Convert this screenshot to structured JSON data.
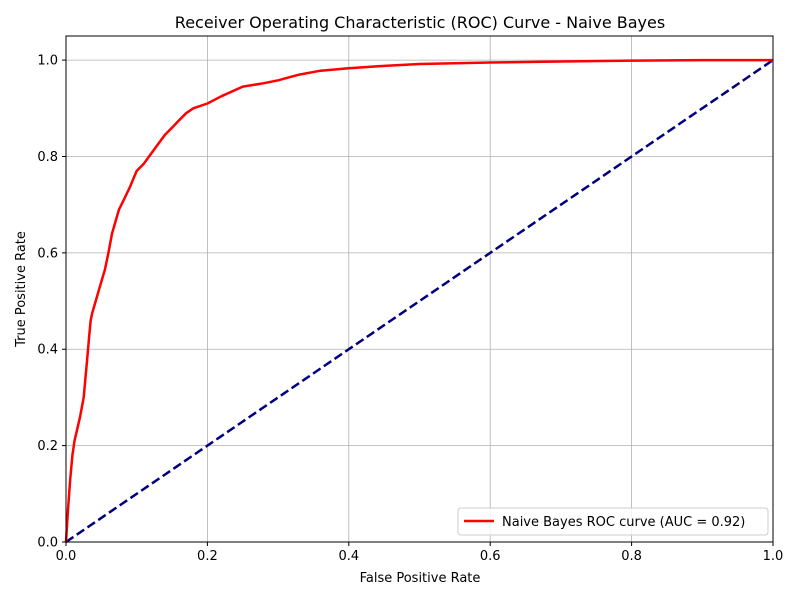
{
  "chart_data": {
    "type": "line",
    "title": "Receiver Operating Characteristic (ROC) Curve - Naive Bayes",
    "xlabel": "False Positive Rate",
    "ylabel": "True Positive Rate",
    "xlim": [
      0.0,
      1.0
    ],
    "ylim": [
      0.0,
      1.05
    ],
    "xticks": [
      0.0,
      0.2,
      0.4,
      0.6,
      0.8,
      1.0
    ],
    "xtick_labels": [
      "0.0",
      "0.2",
      "0.4",
      "0.6",
      "0.8",
      "1.0"
    ],
    "yticks": [
      0.0,
      0.2,
      0.4,
      0.6,
      0.8,
      1.0
    ],
    "ytick_labels": [
      "0.0",
      "0.2",
      "0.4",
      "0.6",
      "0.8",
      "1.0"
    ],
    "grid": true,
    "legend": {
      "placement": "lower-right",
      "entries": [
        "Naive Bayes ROC curve (AUC = 0.92)"
      ]
    },
    "series": [
      {
        "name": "Naive Bayes ROC curve (AUC = 0.92)",
        "color": "#ff0000",
        "style": "solid",
        "x": [
          0.0,
          0.003,
          0.006,
          0.009,
          0.012,
          0.016,
          0.02,
          0.025,
          0.03,
          0.033,
          0.035,
          0.037,
          0.04,
          0.045,
          0.05,
          0.055,
          0.06,
          0.065,
          0.07,
          0.075,
          0.08,
          0.085,
          0.09,
          0.1,
          0.11,
          0.12,
          0.13,
          0.14,
          0.15,
          0.16,
          0.17,
          0.18,
          0.2,
          0.22,
          0.25,
          0.28,
          0.3,
          0.33,
          0.36,
          0.4,
          0.45,
          0.5,
          0.6,
          0.7,
          0.8,
          0.9,
          1.0
        ],
        "y": [
          0.0,
          0.07,
          0.13,
          0.18,
          0.21,
          0.235,
          0.26,
          0.3,
          0.38,
          0.43,
          0.46,
          0.475,
          0.49,
          0.515,
          0.54,
          0.565,
          0.6,
          0.64,
          0.665,
          0.69,
          0.705,
          0.72,
          0.735,
          0.77,
          0.785,
          0.805,
          0.825,
          0.845,
          0.86,
          0.875,
          0.89,
          0.9,
          0.91,
          0.925,
          0.945,
          0.952,
          0.958,
          0.97,
          0.978,
          0.983,
          0.988,
          0.992,
          0.995,
          0.997,
          0.999,
          1.0,
          1.0
        ]
      },
      {
        "name": "",
        "color": "#000080",
        "style": "dashed",
        "x": [
          0.0,
          1.0
        ],
        "y": [
          0.0,
          1.0
        ]
      }
    ]
  }
}
